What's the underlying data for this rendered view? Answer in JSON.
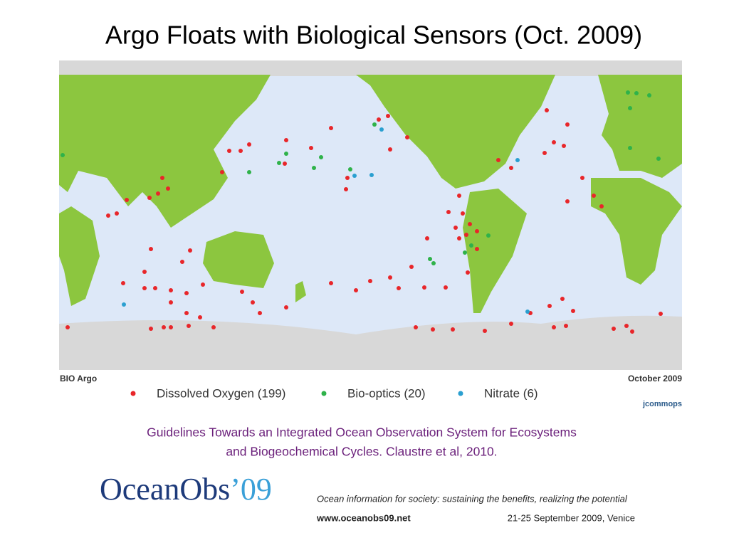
{
  "title": "Argo Floats with Biological Sensors (Oct. 2009)",
  "map": {
    "left_label": "BIO Argo",
    "right_label": "October 2009",
    "legend": [
      {
        "label": "Dissolved Oxygen (199)",
        "color": "#e8262a"
      },
      {
        "label": "Bio-optics (20)",
        "color": "#2fb24a"
      },
      {
        "label": "Nitrate (6)",
        "color": "#2a9fd0"
      }
    ],
    "credit": "jcommops"
  },
  "caption": [
    "Guidelines Towards an Integrated Ocean Observation System for Ecosystems",
    "and Biogeochemical Cycles. Claustre et al, 2010."
  ],
  "footer": {
    "logo_main": "OceanObs",
    "logo_suffix": "’09",
    "tagline": "Ocean information for society: sustaining the benefits, realizing the potential",
    "url": "www.oceanobs09.net",
    "dates": "21-25 September 2009, Venice"
  }
}
